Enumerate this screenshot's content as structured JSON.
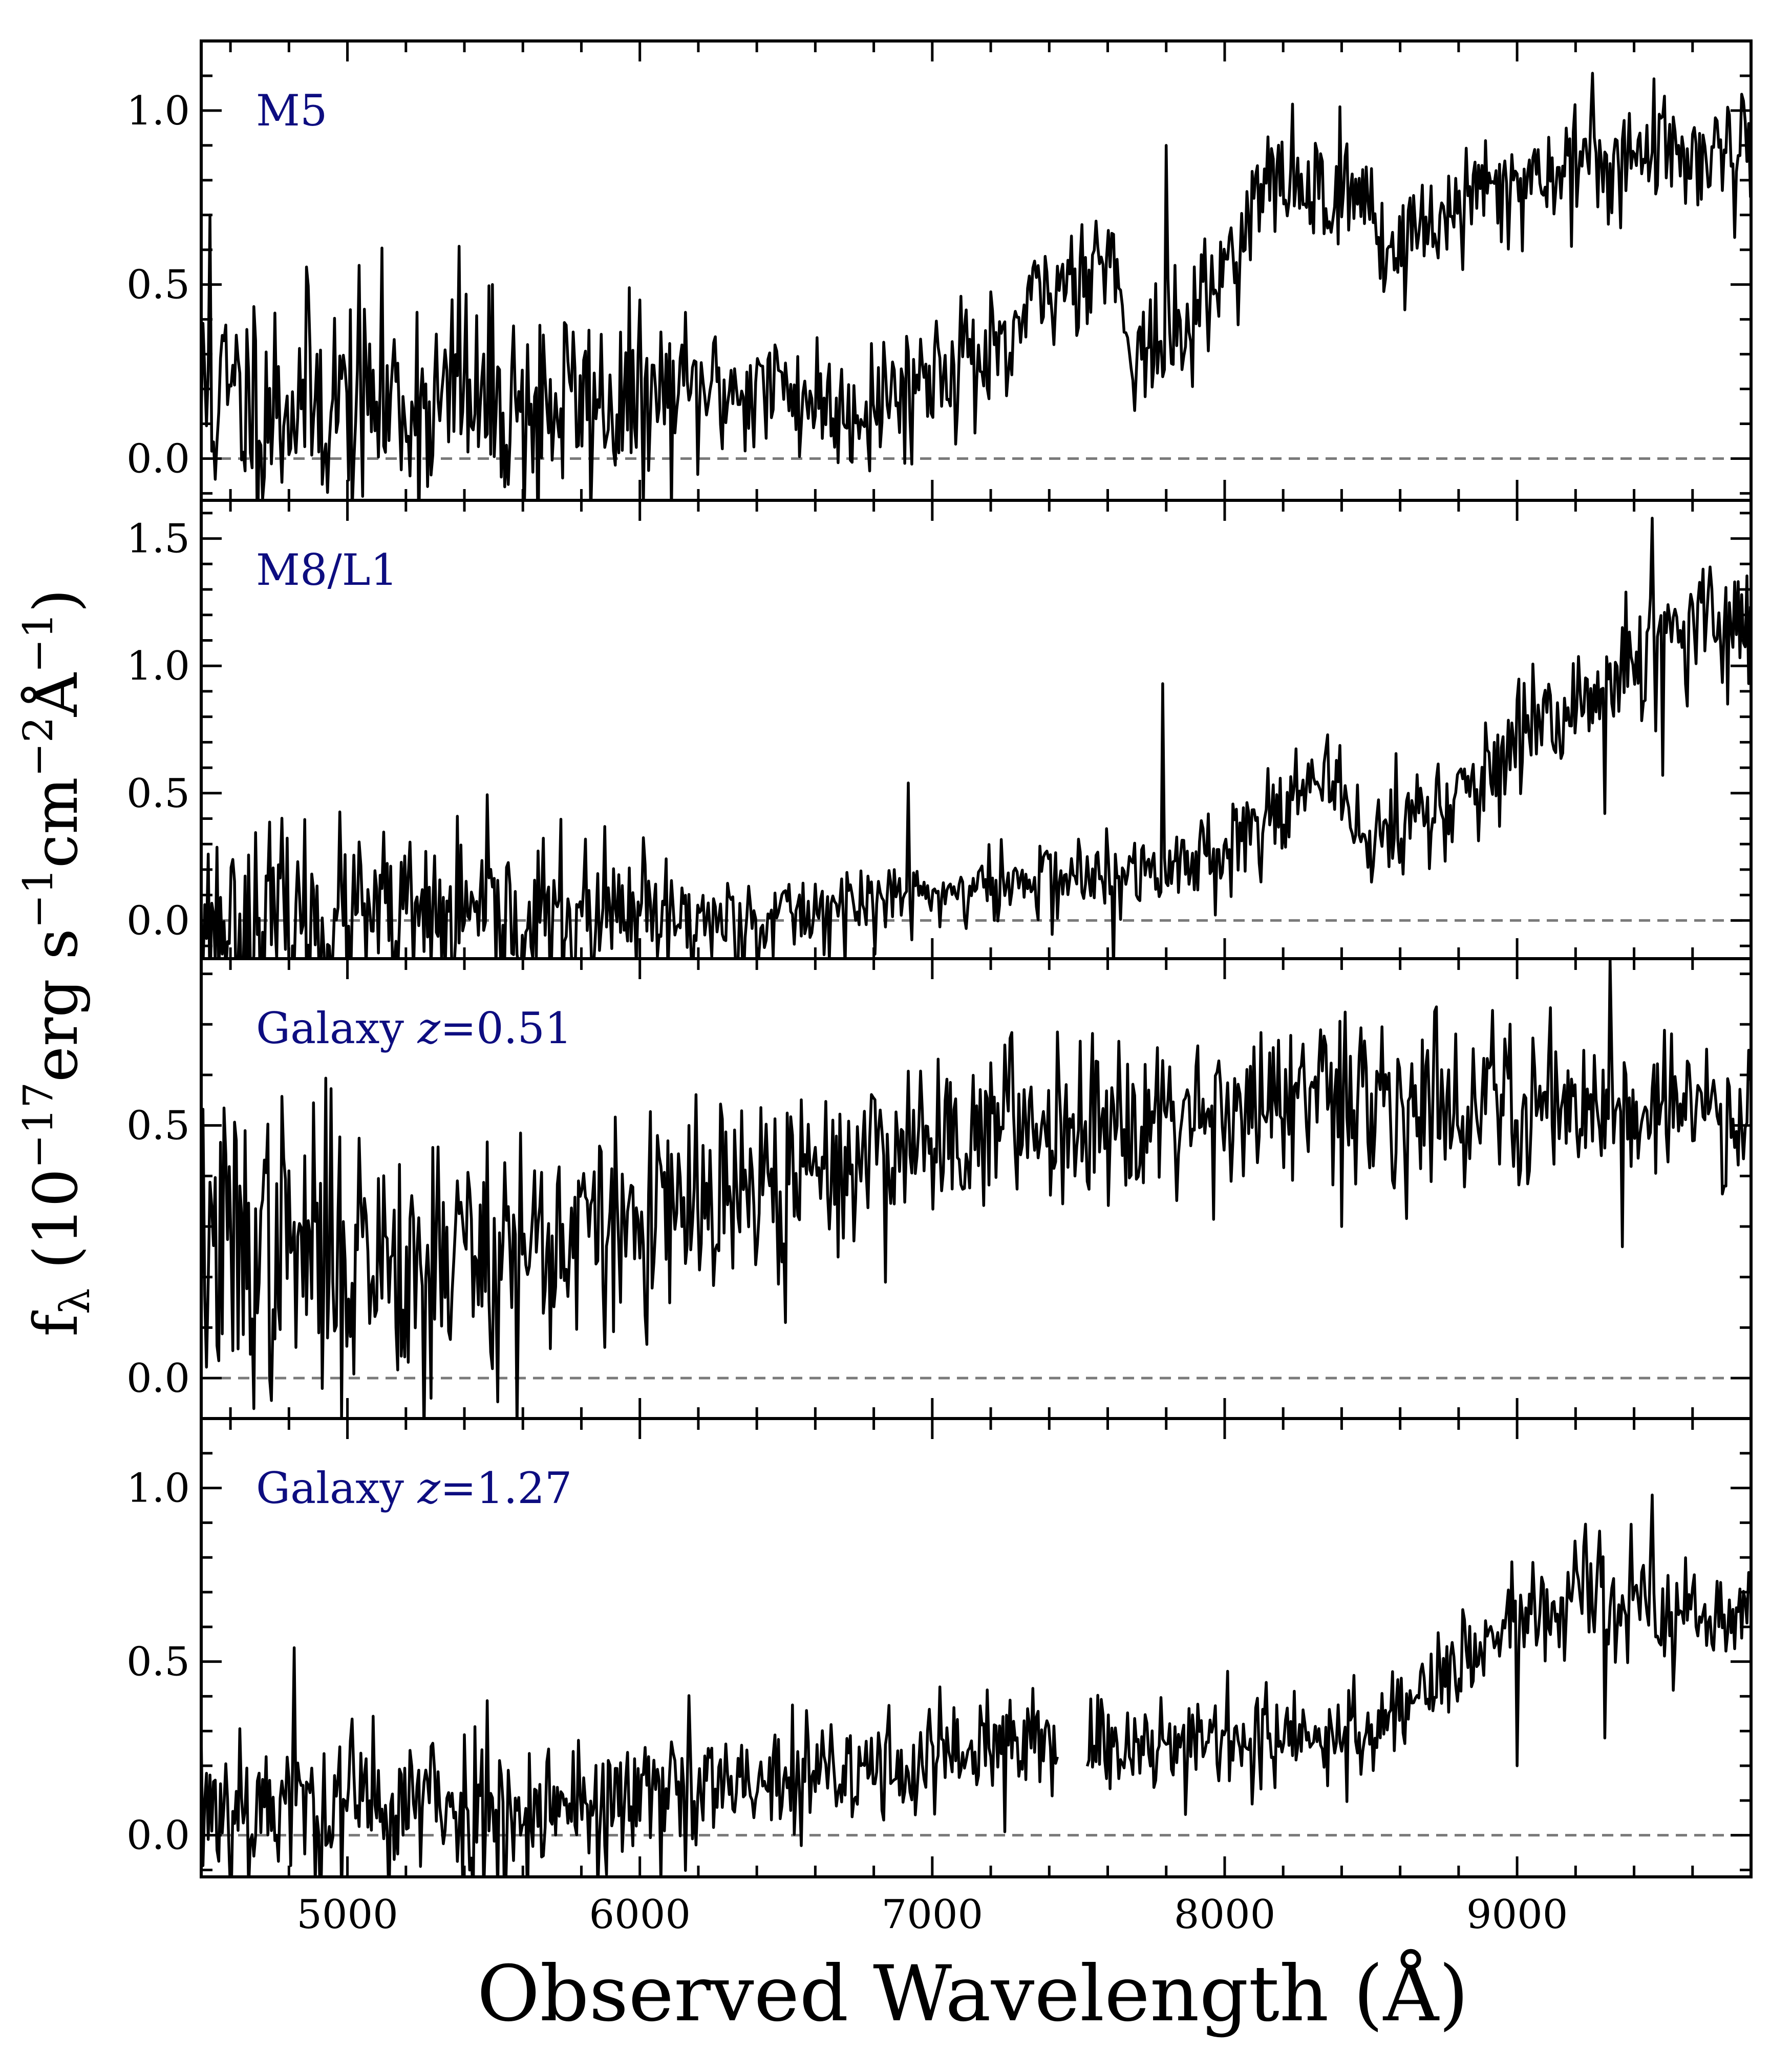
{
  "chart_data": {
    "type": "line",
    "xlabel": "Observed Wavelength (Å)",
    "ylabel": "f_λ (10^-17 erg s^-1 cm^-2 Å^-1)",
    "ylabel_parts": {
      "f": "f",
      "sub": "λ",
      "open": "(10",
      "e1": "−17",
      "erg": "erg s",
      "e2": "−1",
      "cm": "cm",
      "e3": "−2",
      "A": "Å",
      "e4": "−1",
      "close": ")"
    },
    "xlim": [
      4500,
      9800
    ],
    "xticks": [
      5000,
      6000,
      7000,
      8000,
      9000
    ],
    "xticklabels": [
      "5000",
      "6000",
      "7000",
      "8000",
      "9000"
    ],
    "grid": false,
    "panels": [
      {
        "label": "M5",
        "ylim": [
          -0.12,
          1.2
        ],
        "yticks": [
          0.0,
          0.5,
          1.0
        ],
        "yticklabels": [
          "0.0",
          "0.5",
          "1.0"
        ],
        "noise_seed": 11,
        "continuum": [
          [
            4500,
            0.17
          ],
          [
            5000,
            0.17
          ],
          [
            5500,
            0.16
          ],
          [
            6000,
            0.16
          ],
          [
            6300,
            0.2
          ],
          [
            6500,
            0.2
          ],
          [
            6700,
            0.14
          ],
          [
            6900,
            0.2
          ],
          [
            7100,
            0.3
          ],
          [
            7250,
            0.25
          ],
          [
            7300,
            0.4
          ],
          [
            7500,
            0.55
          ],
          [
            7600,
            0.6
          ],
          [
            7700,
            0.3
          ],
          [
            7850,
            0.35
          ],
          [
            8000,
            0.55
          ],
          [
            8150,
            0.8
          ],
          [
            8300,
            0.78
          ],
          [
            8500,
            0.75
          ],
          [
            8550,
            0.58
          ],
          [
            8700,
            0.68
          ],
          [
            9000,
            0.8
          ],
          [
            9300,
            0.87
          ],
          [
            9800,
            0.9
          ]
        ],
        "noise": [
          [
            4500,
            0.17
          ],
          [
            5800,
            0.15
          ],
          [
            6300,
            0.1
          ],
          [
            7300,
            0.09
          ],
          [
            8000,
            0.08
          ],
          [
            9800,
            0.1
          ]
        ],
        "spikes": [
          [
            4530,
            0.7
          ],
          [
            5380,
            0.61
          ],
          [
            5650,
            -0.28
          ],
          [
            7800,
            0.9
          ]
        ],
        "gaps": []
      },
      {
        "label": "M8/L1",
        "ylim": [
          -0.15,
          1.65
        ],
        "yticks": [
          0.0,
          0.5,
          1.0,
          1.5
        ],
        "yticklabels": [
          "0.0",
          "0.5",
          "1.0",
          "1.5"
        ],
        "noise_seed": 23,
        "continuum": [
          [
            4500,
            0.0
          ],
          [
            6400,
            0.0
          ],
          [
            6600,
            0.04
          ],
          [
            7000,
            0.1
          ],
          [
            7500,
            0.18
          ],
          [
            7650,
            0.15
          ],
          [
            7900,
            0.25
          ],
          [
            8100,
            0.35
          ],
          [
            8200,
            0.5
          ],
          [
            8400,
            0.5
          ],
          [
            8500,
            0.3
          ],
          [
            8600,
            0.38
          ],
          [
            8750,
            0.45
          ],
          [
            9000,
            0.65
          ],
          [
            9200,
            0.85
          ],
          [
            9500,
            1.05
          ],
          [
            9800,
            1.25
          ]
        ],
        "noise": [
          [
            4500,
            0.18
          ],
          [
            6000,
            0.15
          ],
          [
            6500,
            0.08
          ],
          [
            7500,
            0.08
          ],
          [
            8500,
            0.1
          ],
          [
            9800,
            0.16
          ]
        ],
        "spikes": [
          [
            6920,
            0.54
          ],
          [
            7790,
            0.93
          ],
          [
            7620,
            -0.2
          ],
          [
            9300,
            0.42
          ],
          [
            9460,
            1.58
          ],
          [
            9500,
            0.57
          ]
        ],
        "gaps": []
      },
      {
        "label": "Galaxy z=0.51",
        "label_prefix": "Galaxy ",
        "label_var": "z",
        "label_suffix": "=0.51",
        "ylim": [
          -0.08,
          0.83
        ],
        "yticks": [
          0.0,
          0.5
        ],
        "yticklabels": [
          "0.0",
          "0.5"
        ],
        "noise_seed": 37,
        "continuum": [
          [
            4500,
            0.25
          ],
          [
            5000,
            0.25
          ],
          [
            5500,
            0.26
          ],
          [
            6000,
            0.3
          ],
          [
            6500,
            0.38
          ],
          [
            7000,
            0.48
          ],
          [
            7500,
            0.52
          ],
          [
            8000,
            0.54
          ],
          [
            8500,
            0.55
          ],
          [
            9000,
            0.55
          ],
          [
            9500,
            0.54
          ],
          [
            9800,
            0.53
          ]
        ],
        "noise": [
          [
            4500,
            0.15
          ],
          [
            5500,
            0.13
          ],
          [
            6000,
            0.1
          ],
          [
            7000,
            0.08
          ],
          [
            9800,
            0.08
          ]
        ],
        "spikes": [
          [
            5580,
            0.7
          ],
          [
            5580,
            -0.1
          ],
          [
            5260,
            -0.12
          ],
          [
            9320,
            0.83
          ],
          [
            9360,
            0.26
          ],
          [
            6500,
            0.11
          ],
          [
            8400,
            0.3
          ]
        ],
        "gaps": []
      },
      {
        "label": "Galaxy z=1.27",
        "label_prefix": "Galaxy ",
        "label_var": "z",
        "label_suffix": "=1.27",
        "ylim": [
          -0.12,
          1.2
        ],
        "yticks": [
          0.0,
          0.5,
          1.0
        ],
        "yticklabels": [
          "0.0",
          "0.5",
          "1.0"
        ],
        "noise_seed": 53,
        "continuum": [
          [
            4500,
            0.1
          ],
          [
            5500,
            0.08
          ],
          [
            6000,
            0.1
          ],
          [
            6500,
            0.15
          ],
          [
            7000,
            0.22
          ],
          [
            7400,
            0.28
          ],
          [
            7700,
            0.27
          ],
          [
            8000,
            0.28
          ],
          [
            8300,
            0.27
          ],
          [
            8500,
            0.3
          ],
          [
            8700,
            0.45
          ],
          [
            8900,
            0.55
          ],
          [
            9000,
            0.62
          ],
          [
            9200,
            0.68
          ],
          [
            9500,
            0.65
          ],
          [
            9800,
            0.6
          ]
        ],
        "noise": [
          [
            4500,
            0.13
          ],
          [
            5800,
            0.12
          ],
          [
            6500,
            0.09
          ],
          [
            8000,
            0.07
          ],
          [
            9800,
            0.09
          ]
        ],
        "spikes": [
          [
            4820,
            0.54
          ],
          [
            7250,
            0.01
          ],
          [
            9460,
            0.98
          ],
          [
            9000,
            0.2
          ],
          [
            9300,
            0.28
          ],
          [
            6550,
            -0.03
          ]
        ],
        "gaps": [
          [
            7430,
            7530
          ]
        ]
      }
    ]
  }
}
